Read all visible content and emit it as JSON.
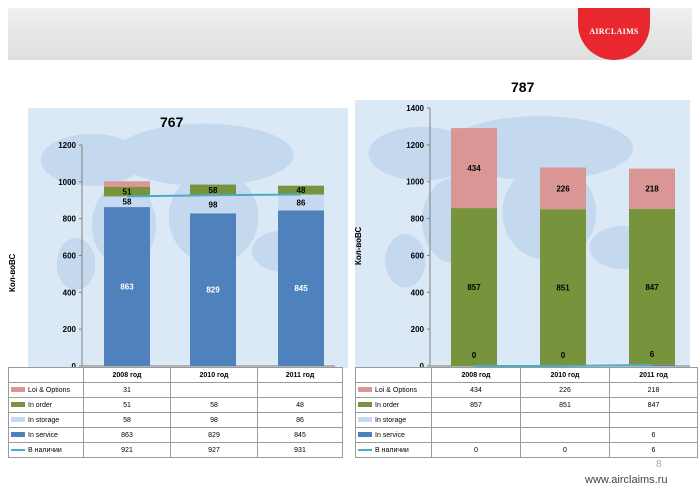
{
  "logo_text": "AIRCLAIMS",
  "colors": {
    "in_service": "#4f81bd",
    "in_storage": "#c6d9f1",
    "in_order": "#77933c",
    "loi_options": "#d99694",
    "available": "#4bacc6"
  },
  "chart_data": [
    {
      "type": "bar",
      "title": "767",
      "ylabel": "Кол-воВС",
      "ylim": [
        0,
        1200
      ],
      "yticks": [
        0,
        200,
        400,
        600,
        800,
        1000,
        1200
      ],
      "categories": [
        "2008 год",
        "2010 год",
        "2011 год"
      ],
      "series": [
        {
          "name": "Loi & Options",
          "key": "loi_options",
          "values": [
            31,
            null,
            null
          ],
          "labels": [
            "",
            "",
            ""
          ]
        },
        {
          "name": "In order",
          "key": "in_order",
          "values": [
            51,
            58,
            48
          ],
          "labels": [
            "51",
            "58",
            "48"
          ]
        },
        {
          "name": "In storage",
          "key": "in_storage",
          "values": [
            58,
            98,
            86
          ],
          "labels": [
            "58",
            "98",
            "86"
          ]
        },
        {
          "name": "In service",
          "key": "in_service",
          "values": [
            863,
            829,
            845
          ],
          "labels": [
            "863",
            "829",
            "845"
          ]
        },
        {
          "name": "В наличии",
          "key": "available",
          "type": "line",
          "values": [
            921,
            927,
            931
          ]
        }
      ],
      "table": [
        {
          "label": "Loi & Options",
          "key": "loi_options",
          "values": [
            "31",
            "",
            ""
          ]
        },
        {
          "label": "In order",
          "key": "in_order",
          "values": [
            "51",
            "58",
            "48"
          ]
        },
        {
          "label": "In storage",
          "key": "in_storage",
          "values": [
            "58",
            "98",
            "86"
          ]
        },
        {
          "label": "In service",
          "key": "in_service",
          "values": [
            "863",
            "829",
            "845"
          ]
        },
        {
          "label": "В наличии",
          "key": "available",
          "values": [
            "921",
            "927",
            "931"
          ]
        }
      ]
    },
    {
      "type": "bar",
      "title": "787",
      "ylabel": "Кол-воВС",
      "ylim": [
        0,
        1400
      ],
      "yticks": [
        0,
        200,
        400,
        600,
        800,
        1000,
        1200,
        1400
      ],
      "categories": [
        "2008 год",
        "2010 год",
        "2011 год"
      ],
      "series": [
        {
          "name": "Loi & Options",
          "key": "loi_options",
          "values": [
            434,
            226,
            218
          ],
          "labels": [
            "434",
            "226",
            "218"
          ]
        },
        {
          "name": "In order",
          "key": "in_order",
          "values": [
            857,
            851,
            847
          ],
          "labels": [
            "857",
            "851",
            "847"
          ]
        },
        {
          "name": "In storage",
          "key": "in_storage",
          "values": [
            null,
            null,
            null
          ],
          "labels": [
            "",
            "",
            ""
          ]
        },
        {
          "name": "In service",
          "key": "in_service",
          "values": [
            null,
            null,
            6
          ],
          "labels": [
            "",
            "",
            ""
          ]
        },
        {
          "name": "В наличии",
          "key": "available",
          "type": "line",
          "values": [
            0,
            0,
            6
          ],
          "labels": [
            "0",
            "0",
            "6"
          ]
        }
      ],
      "table": [
        {
          "label": "Loi & Options",
          "key": "loi_options",
          "values": [
            "434",
            "226",
            "218"
          ]
        },
        {
          "label": "In order",
          "key": "in_order",
          "values": [
            "857",
            "851",
            "847"
          ]
        },
        {
          "label": "In storage",
          "key": "in_storage",
          "values": [
            "",
            "",
            ""
          ]
        },
        {
          "label": "In service",
          "key": "in_service",
          "values": [
            "",
            "",
            "6"
          ]
        },
        {
          "label": "В наличии",
          "key": "available",
          "values": [
            "0",
            "0",
            "6"
          ]
        }
      ]
    }
  ],
  "page_number": "8",
  "footer_url": "www.airclaims.ru"
}
